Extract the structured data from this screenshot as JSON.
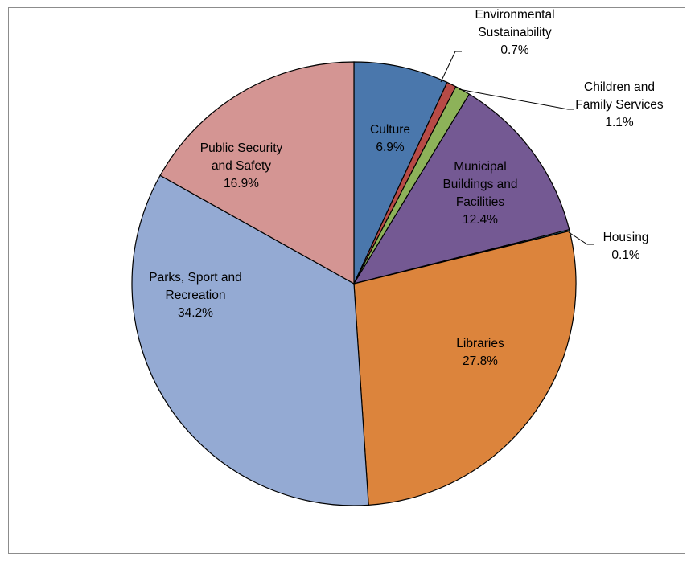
{
  "chart_data": {
    "type": "pie",
    "title": "",
    "legend": "none",
    "slices": [
      {
        "name": "Culture",
        "pct_label": "6.9%",
        "value": 6.9,
        "color": "#4A77AC"
      },
      {
        "name": "Environmental Sustainability",
        "pct_label": "0.7%",
        "value": 0.7,
        "color": "#B74B46"
      },
      {
        "name": "Children and Family Services",
        "pct_label": "1.1%",
        "value": 1.1,
        "color": "#8DB259"
      },
      {
        "name": "Municipal Buildings and Facilities",
        "pct_label": "12.4%",
        "value": 12.4,
        "color": "#745993"
      },
      {
        "name": "Housing",
        "pct_label": "0.1%",
        "value": 0.1,
        "color": "#3D9DB4"
      },
      {
        "name": "Libraries",
        "pct_label": "27.8%",
        "value": 27.8,
        "color": "#DC843C"
      },
      {
        "name": "Parks, Sport and Recreation",
        "pct_label": "34.2%",
        "value": 34.2,
        "color": "#94AAD3"
      },
      {
        "name": "Public Security and Safety",
        "pct_label": "16.9%",
        "value": 16.9,
        "color": "#D49593"
      }
    ]
  }
}
